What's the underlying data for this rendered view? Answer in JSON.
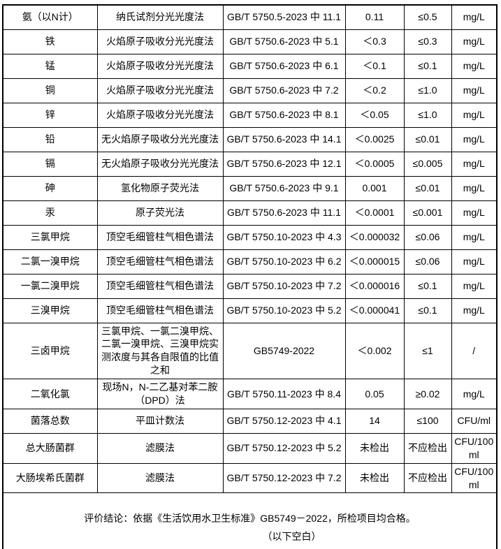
{
  "table": {
    "column_keys": [
      "param",
      "method",
      "standard",
      "result",
      "limit",
      "unit"
    ],
    "rows": [
      {
        "param": "氨（以N计）",
        "method": "纳氏试剂分光光度法",
        "standard": "GB/T 5750.5-2023 中 11.1",
        "result": "0.11",
        "limit": "≤0.5",
        "unit": "mg/L"
      },
      {
        "param": "铁",
        "method": "火焰原子吸收分光光度法",
        "standard": "GB/T 5750.6-2023 中 5.1",
        "result": "＜0.3",
        "limit": "≤0.3",
        "unit": "mg/L"
      },
      {
        "param": "锰",
        "method": "火焰原子吸收分光光度法",
        "standard": "GB/T 5750.6-2023 中 6.1",
        "result": "＜0.1",
        "limit": "≤0.1",
        "unit": "mg/L"
      },
      {
        "param": "铜",
        "method": "火焰原子吸收分光光度法",
        "standard": "GB/T 5750.6-2023 中 7.2",
        "result": "＜0.2",
        "limit": "≤1.0",
        "unit": "mg/L"
      },
      {
        "param": "锌",
        "method": "火焰原子吸收分光光度法",
        "standard": "GB/T 5750.6-2023 中 8.1",
        "result": "＜0.05",
        "limit": "≤1.0",
        "unit": "mg/L"
      },
      {
        "param": "铅",
        "method": "无火焰原子吸收分光光度法",
        "standard": "GB/T 5750.6-2023 中 14.1",
        "result": "＜0.0025",
        "limit": "≤0.01",
        "unit": "mg/L"
      },
      {
        "param": "镉",
        "method": "无火焰原子吸收分光光度法",
        "standard": "GB/T 5750.6-2023 中 12.1",
        "result": "＜0.0005",
        "limit": "≤0.005",
        "unit": "mg/L"
      },
      {
        "param": "砷",
        "method": "氢化物原子荧光法",
        "standard": "GB/T 5750.6-2023 中 9.1",
        "result": "0.001",
        "limit": "≤0.01",
        "unit": "mg/L"
      },
      {
        "param": "汞",
        "method": "原子荧光法",
        "standard": "GB/T 5750.6-2023 中 11.1",
        "result": "＜0.0001",
        "limit": "≤0.001",
        "unit": "mg/L"
      },
      {
        "param": "三氯甲烷",
        "method": "顶空毛细管柱气相色谱法",
        "standard": "GB/T 5750.10-2023 中 4.3",
        "result": "＜0.000032",
        "limit": "≤0.06",
        "unit": "mg/L"
      },
      {
        "param": "二氯一溴甲烷",
        "method": "顶空毛细管柱气相色谱法",
        "standard": "GB/T 5750.10-2023 中 6.2",
        "result": "＜0.000015",
        "limit": "≤0.06",
        "unit": "mg/L"
      },
      {
        "param": "一氯二溴甲烷",
        "method": "顶空毛细管柱气相色谱法",
        "standard": "GB/T 5750.10-2023 中 7.2",
        "result": "＜0.000016",
        "limit": "≤0.1",
        "unit": "mg/L"
      },
      {
        "param": "三溴甲烷",
        "method": "顶空毛细管柱气相色谱法",
        "standard": "GB/T 5750.10-2023 中 5.2",
        "result": "＜0.000041",
        "limit": "≤0.1",
        "unit": "mg/L"
      },
      {
        "param": "三卤甲烷",
        "method": "三氯甲烷、一氯二溴甲烷、二氯一溴甲烷、三溴甲烷实测浓度与其各自限值的比值之和",
        "standard": "GB5749-2022",
        "result": "＜0.002",
        "limit": "≤1",
        "unit": "/"
      },
      {
        "param": "二氧化氯",
        "method": "现场N，N-二乙基对苯二胺（DPD）法",
        "standard": "GB/T 5750.11-2023 中 8.4",
        "result": "0.05",
        "limit": "≥0.02",
        "unit": "mg/L"
      },
      {
        "param": "菌落总数",
        "method": "平皿计数法",
        "standard": "GB/T 5750.12-2023 中 4.1",
        "result": "14",
        "limit": "≤100",
        "unit": "CFU/ml"
      },
      {
        "param": "总大肠菌群",
        "method": "滤膜法",
        "standard": "GB/T 5750.12-2023 中 5.2",
        "result": "未检出",
        "limit": "不应检出",
        "unit": "CFU/100 ml"
      },
      {
        "param": "大肠埃希氏菌群",
        "method": "滤膜法",
        "standard": "GB/T 5750.12-2023 中 7.2",
        "result": "未检出",
        "limit": "不应检出",
        "unit": "CFU/100 ml"
      }
    ]
  },
  "footer": {
    "conclusion": "评价结论：依据《生活饮用水卫生标准》GB5749－2022，所检项目均合格。",
    "blank_note": "（以下空白）"
  }
}
